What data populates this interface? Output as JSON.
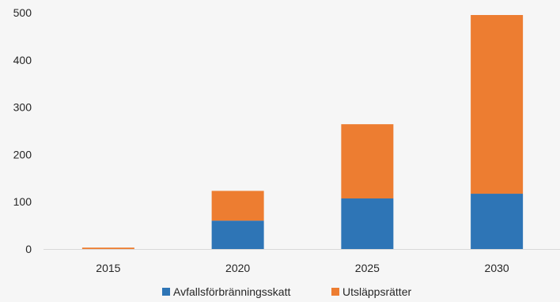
{
  "chart_data": {
    "type": "bar",
    "stacked": true,
    "categories": [
      "2015",
      "2020",
      "2025",
      "2030"
    ],
    "series": [
      {
        "name": "Avfallsförbränningsskatt",
        "color": "#2e75b6",
        "values": [
          0,
          60,
          107,
          117
        ]
      },
      {
        "name": "Utsläppsrätter",
        "color": "#ed7d31",
        "values": [
          3,
          63,
          157,
          378
        ]
      }
    ],
    "y_ticks": [
      0,
      100,
      200,
      300,
      400,
      500
    ],
    "y_tick_labels": [
      "0",
      "100",
      "200",
      "300",
      "400",
      "500"
    ],
    "ylim": [
      0,
      500
    ],
    "grid": false,
    "legend_position": "bottom"
  }
}
